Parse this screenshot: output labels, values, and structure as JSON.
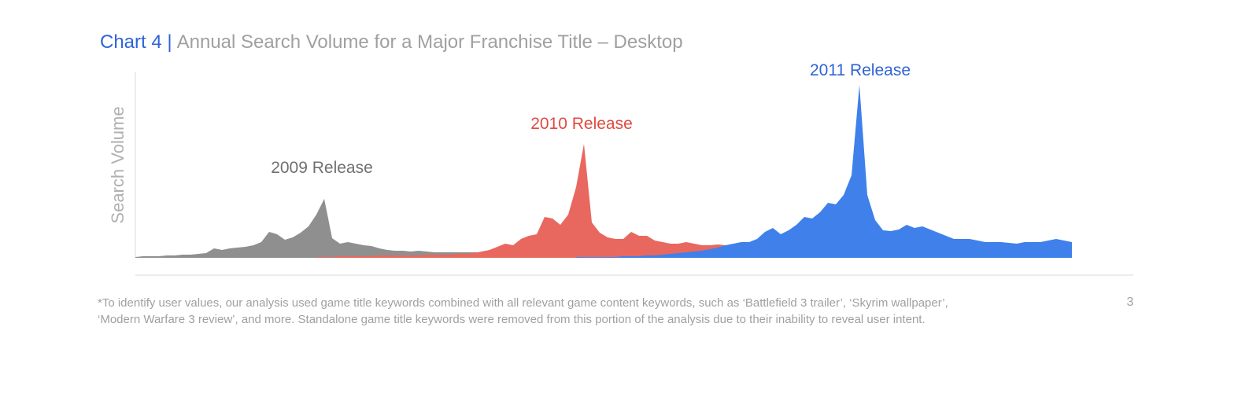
{
  "chart_data": {
    "type": "area",
    "title_prefix": "Chart 4 |",
    "title": "Annual Search Volume for a Major Franchise Title – Desktop",
    "y_label": "Search Volume",
    "annotations": [
      "2009 Release",
      "2010 Release",
      "2011 Release"
    ],
    "footnote": [
      "*To identify user values, our analysis used game title keywords combined with all relevant game content keywords, such as ‘Battlefield 3 trailer’, ‘Skyrim wallpaper’,",
      "‘Modern Warfare 3 review’, and more.  Standalone game title keywords were removed from this portion of the analysis due to their inability to reveal user intent."
    ],
    "page_number": "3",
    "xlim": [
      0,
      119
    ],
    "ylim": [
      0,
      236
    ],
    "x": [
      0,
      1,
      2,
      3,
      4,
      5,
      6,
      7,
      8,
      9,
      10,
      11,
      12,
      13,
      14,
      15,
      16,
      17,
      18,
      19,
      20,
      21,
      22,
      23,
      24,
      25,
      26,
      27,
      28,
      29,
      30,
      31,
      32,
      33,
      34,
      35,
      36,
      37,
      38,
      39,
      40,
      41,
      42,
      43,
      44,
      45,
      46,
      47,
      48,
      49,
      50,
      51,
      52,
      53,
      54,
      55,
      56,
      57,
      58,
      59,
      60,
      61,
      62,
      63,
      64,
      65,
      66,
      67,
      68,
      69,
      70,
      71,
      72,
      73,
      74,
      75,
      76,
      77,
      78,
      79,
      80,
      81,
      82,
      83,
      84,
      85,
      86,
      87,
      88,
      89,
      90,
      91,
      92,
      93,
      94,
      95,
      96,
      97,
      98,
      99,
      100,
      101,
      102,
      103,
      104,
      105,
      106,
      107,
      108,
      109,
      110,
      111,
      112,
      113,
      114,
      115,
      116,
      117,
      118,
      119
    ],
    "series": [
      {
        "name": "2009",
        "color": "#8f8f8f",
        "values": [
          1,
          2,
          2,
          2,
          3,
          3,
          4,
          4,
          5,
          6,
          12,
          10,
          12,
          13,
          14,
          16,
          20,
          33,
          30,
          23,
          26,
          32,
          40,
          55,
          75,
          25,
          18,
          20,
          18,
          16,
          15,
          12,
          10,
          9,
          9,
          8,
          9,
          8,
          7,
          7,
          7,
          7,
          7,
          7,
          7,
          7,
          10,
          null,
          null,
          null,
          null,
          null,
          null,
          null,
          null,
          null,
          null,
          null,
          null,
          null,
          null,
          null,
          null,
          null,
          null,
          null,
          null,
          null,
          null,
          null,
          null,
          null,
          null,
          null,
          null,
          null,
          null,
          null,
          null,
          null,
          null,
          null,
          null,
          null,
          null,
          null,
          null,
          null,
          null,
          null,
          null,
          null,
          null,
          null,
          null,
          null,
          null,
          null,
          null,
          null,
          null,
          null,
          null,
          null,
          null,
          null,
          null,
          null,
          null,
          null,
          null,
          null,
          null,
          null,
          null,
          null,
          null,
          null,
          null,
          null
        ]
      },
      {
        "name": "2010",
        "color": "#e8685f",
        "values": [
          null,
          null,
          null,
          null,
          null,
          null,
          null,
          null,
          null,
          null,
          null,
          null,
          null,
          null,
          null,
          null,
          null,
          null,
          null,
          null,
          null,
          null,
          null,
          1,
          1,
          1,
          2,
          2,
          2,
          2,
          2,
          3,
          3,
          3,
          3,
          3,
          3,
          4,
          4,
          4,
          4,
          5,
          5,
          6,
          8,
          10,
          14,
          18,
          16,
          24,
          28,
          30,
          52,
          50,
          42,
          55,
          90,
          145,
          45,
          32,
          26,
          24,
          24,
          33,
          28,
          28,
          22,
          20,
          18,
          18,
          20,
          18,
          16,
          16,
          17,
          16,
          15,
          10,
          5,
          null,
          null,
          null,
          null,
          null,
          null,
          null,
          null,
          null,
          null,
          null,
          null,
          null,
          null,
          null,
          null,
          null,
          null,
          null,
          null,
          null,
          null,
          null,
          null,
          null,
          null,
          null,
          null,
          null,
          null,
          null,
          null,
          null,
          null,
          null,
          null,
          null,
          null,
          null,
          null,
          null
        ]
      },
      {
        "name": "2011",
        "color": "#3f80ea",
        "values": [
          null,
          null,
          null,
          null,
          null,
          null,
          null,
          null,
          null,
          null,
          null,
          null,
          null,
          null,
          null,
          null,
          null,
          null,
          null,
          null,
          null,
          null,
          null,
          null,
          null,
          null,
          null,
          null,
          null,
          null,
          null,
          null,
          null,
          null,
          null,
          null,
          null,
          null,
          null,
          null,
          null,
          null,
          null,
          null,
          null,
          null,
          null,
          null,
          null,
          null,
          null,
          null,
          null,
          null,
          null,
          null,
          1,
          1,
          1,
          1,
          1,
          1,
          2,
          2,
          2,
          3,
          3,
          4,
          5,
          6,
          7,
          8,
          9,
          11,
          13,
          16,
          18,
          20,
          20,
          24,
          33,
          38,
          30,
          35,
          42,
          52,
          50,
          58,
          70,
          68,
          80,
          105,
          220,
          80,
          48,
          35,
          34,
          36,
          42,
          38,
          40,
          36,
          32,
          28,
          24,
          24,
          24,
          22,
          20,
          20,
          20,
          19,
          18,
          20,
          20,
          20,
          22,
          24,
          22,
          20
        ]
      }
    ]
  }
}
